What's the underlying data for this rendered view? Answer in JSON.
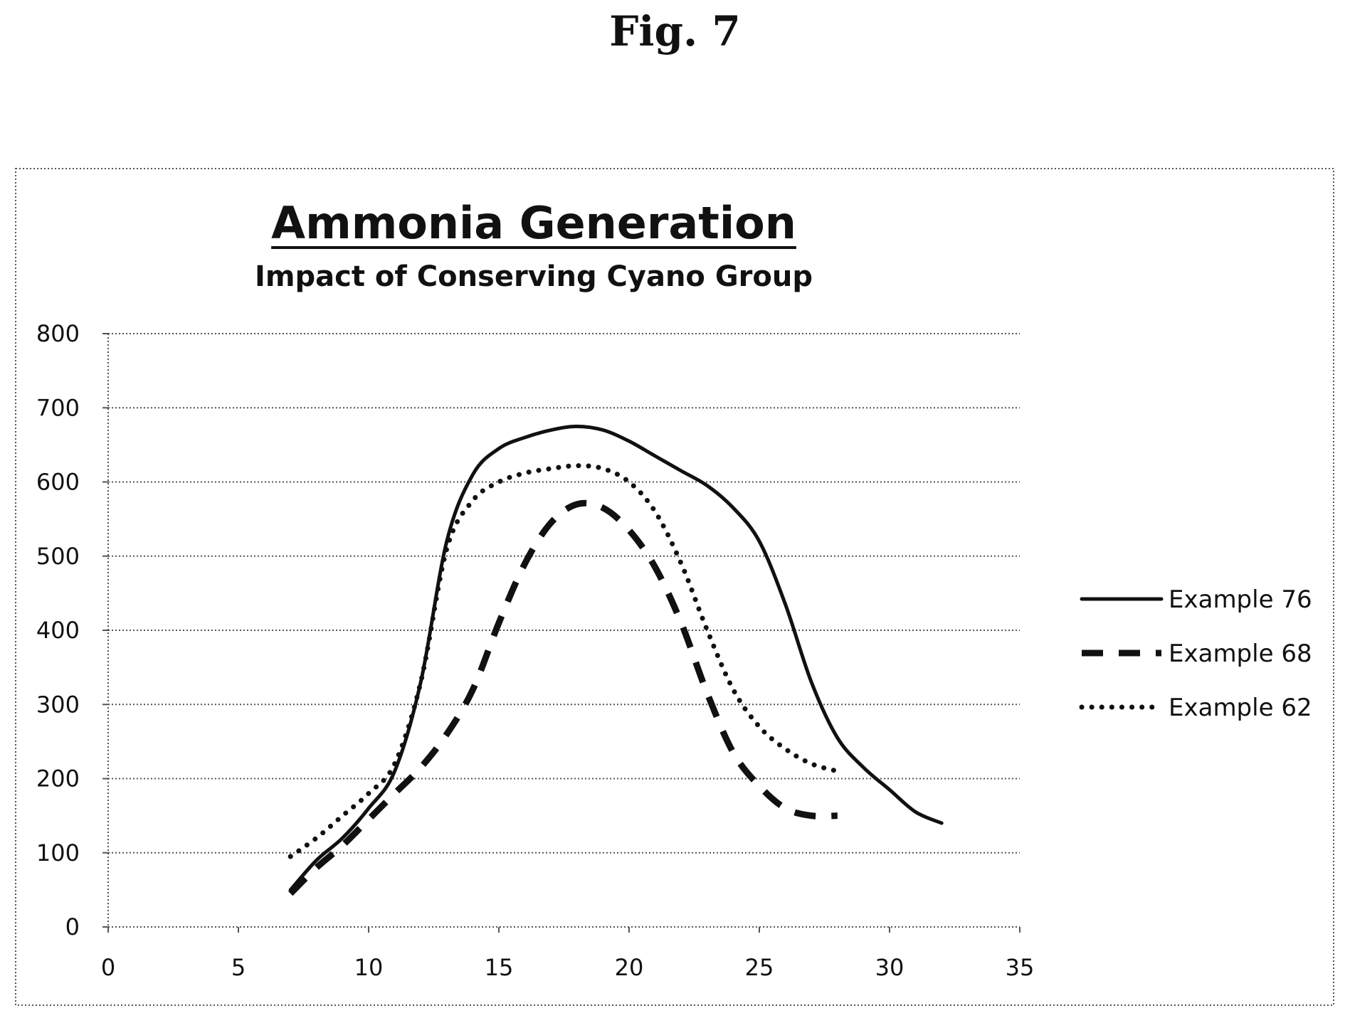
{
  "figure_label": "Fig. 7",
  "chart_data": {
    "type": "line",
    "title": "Ammonia Generation",
    "subtitle": "Impact of Conserving Cyano Group",
    "xlabel": "",
    "ylabel": "",
    "xlim": [
      0,
      35
    ],
    "ylim": [
      0,
      800
    ],
    "x_ticks": [
      0,
      5,
      10,
      15,
      20,
      25,
      30,
      35
    ],
    "y_ticks": [
      0,
      100,
      200,
      300,
      400,
      500,
      600,
      700,
      800
    ],
    "grid": true,
    "legend_position": "right",
    "series": [
      {
        "name": "Example 76",
        "style": "solid",
        "color": "#111111",
        "points": [
          [
            7,
            50
          ],
          [
            8,
            90
          ],
          [
            9,
            120
          ],
          [
            10,
            160
          ],
          [
            11,
            210
          ],
          [
            12,
            330
          ],
          [
            13,
            520
          ],
          [
            14,
            610
          ],
          [
            15,
            645
          ],
          [
            16,
            660
          ],
          [
            17,
            670
          ],
          [
            18,
            675
          ],
          [
            19,
            670
          ],
          [
            20,
            655
          ],
          [
            21,
            635
          ],
          [
            22,
            615
          ],
          [
            23,
            595
          ],
          [
            24,
            565
          ],
          [
            25,
            520
          ],
          [
            26,
            435
          ],
          [
            27,
            330
          ],
          [
            28,
            255
          ],
          [
            29,
            215
          ],
          [
            30,
            185
          ],
          [
            31,
            155
          ],
          [
            32,
            140
          ]
        ]
      },
      {
        "name": "Example 68",
        "style": "dashed",
        "color": "#111111",
        "points": [
          [
            7,
            45
          ],
          [
            8,
            80
          ],
          [
            9,
            110
          ],
          [
            10,
            145
          ],
          [
            11,
            180
          ],
          [
            12,
            215
          ],
          [
            13,
            260
          ],
          [
            14,
            320
          ],
          [
            15,
            410
          ],
          [
            16,
            490
          ],
          [
            17,
            545
          ],
          [
            18,
            570
          ],
          [
            19,
            565
          ],
          [
            20,
            535
          ],
          [
            21,
            485
          ],
          [
            22,
            410
          ],
          [
            23,
            315
          ],
          [
            24,
            235
          ],
          [
            25,
            190
          ],
          [
            26,
            160
          ],
          [
            27,
            150
          ],
          [
            28,
            150
          ]
        ]
      },
      {
        "name": "Example 62",
        "style": "dotted",
        "color": "#111111",
        "points": [
          [
            7,
            95
          ],
          [
            8,
            120
          ],
          [
            9,
            150
          ],
          [
            10,
            180
          ],
          [
            11,
            220
          ],
          [
            12,
            330
          ],
          [
            13,
            510
          ],
          [
            14,
            575
          ],
          [
            15,
            600
          ],
          [
            16,
            612
          ],
          [
            17,
            618
          ],
          [
            18,
            622
          ],
          [
            19,
            618
          ],
          [
            20,
            600
          ],
          [
            21,
            560
          ],
          [
            22,
            490
          ],
          [
            23,
            400
          ],
          [
            24,
            320
          ],
          [
            25,
            270
          ],
          [
            26,
            240
          ],
          [
            27,
            220
          ],
          [
            28,
            210
          ]
        ]
      }
    ]
  }
}
